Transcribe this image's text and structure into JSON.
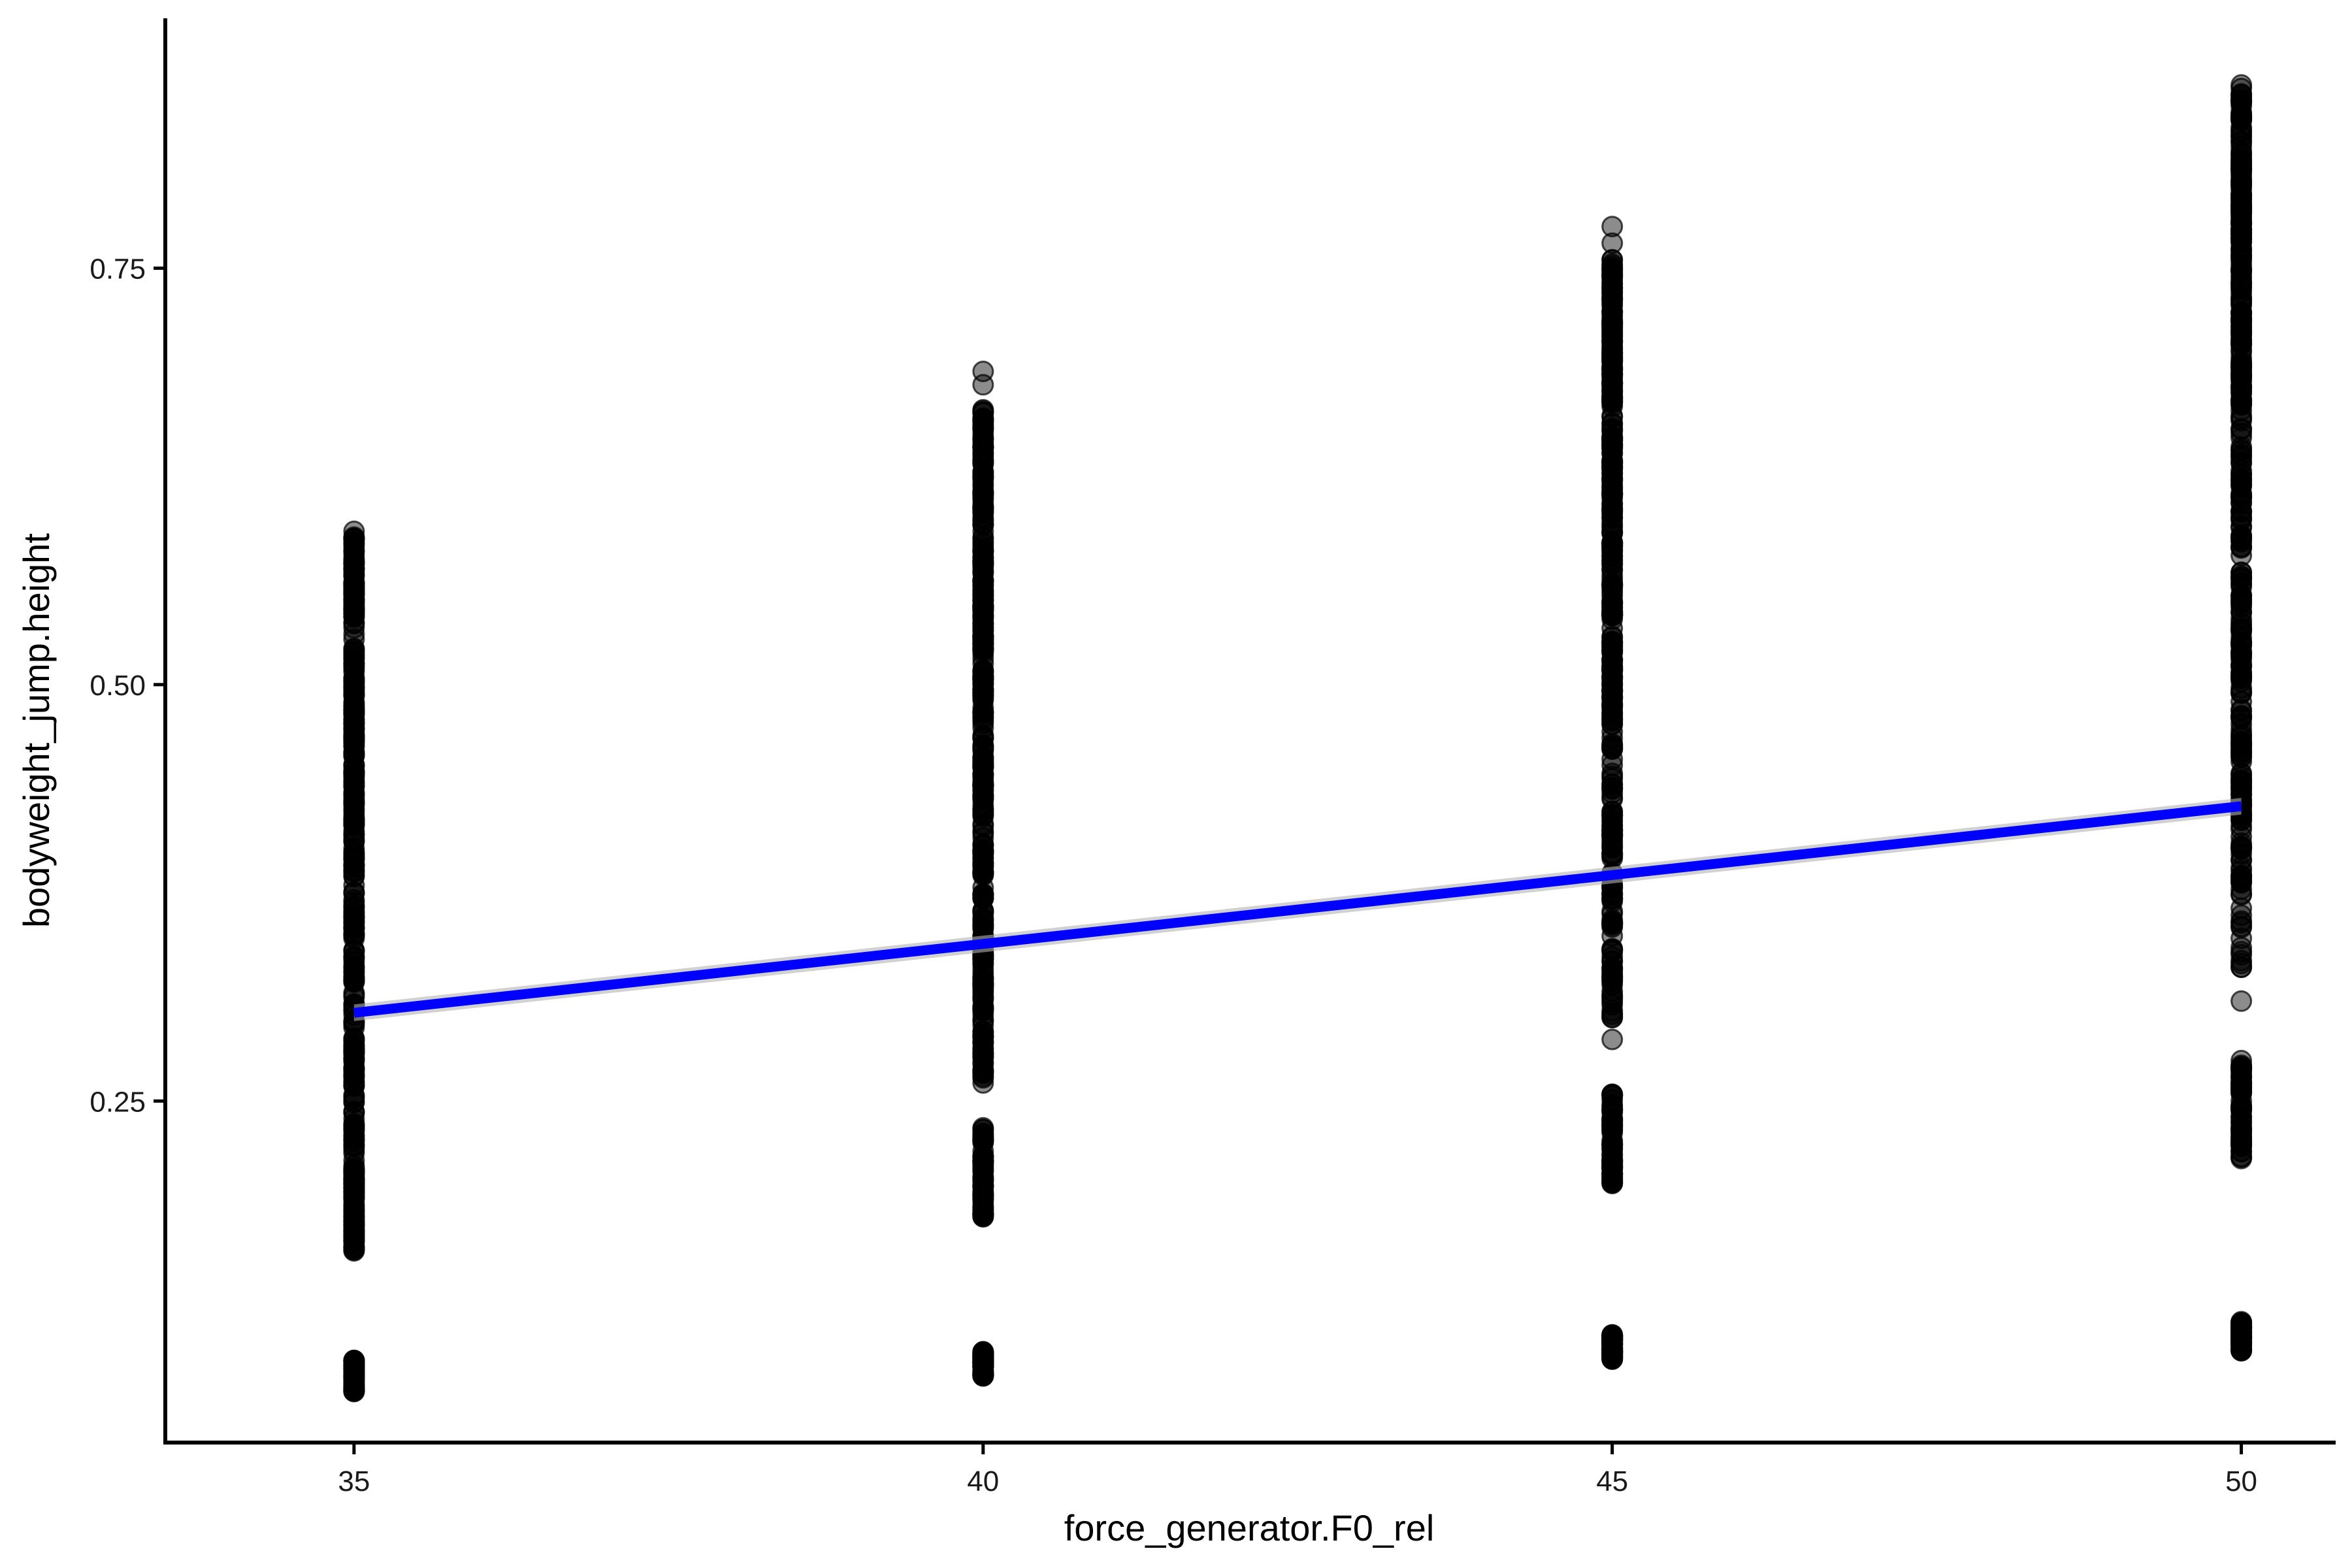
{
  "chart_data": {
    "type": "scatter",
    "xlabel": "force_generator.F0_rel",
    "ylabel": "bodyweight_jump.height",
    "xlim": [
      33.5,
      50.75
    ],
    "ylim": [
      0.045,
      0.9
    ],
    "x_ticks": [
      {
        "value": 35,
        "label": "35"
      },
      {
        "value": 40,
        "label": "40"
      },
      {
        "value": 45,
        "label": "45"
      },
      {
        "value": 50,
        "label": "50"
      }
    ],
    "y_ticks": [
      {
        "value": 0.25,
        "label": "0.25"
      },
      {
        "value": 0.5,
        "label": "0.50"
      },
      {
        "value": 0.75,
        "label": "0.75"
      }
    ],
    "grid": false,
    "point_color": "#000000",
    "point_opacity": 0.45,
    "fit_color": "#0000ff",
    "fit_band_color": "#b3b3b3",
    "groups": [
      {
        "x": 35,
        "y_min": 0.165,
        "y_max": 0.59,
        "clusters": [
          [
            0.075,
            0.095
          ],
          [
            0.16,
            0.21
          ]
        ],
        "outliers": [
          0.592,
          0.583,
          0.57,
          0.565
        ]
      },
      {
        "x": 40,
        "y_min": 0.26,
        "y_max": 0.665,
        "clusters": [
          [
            0.085,
            0.1
          ],
          [
            0.18,
            0.235
          ]
        ],
        "outliers": [
          0.688,
          0.68,
          0.665,
          0.66
        ]
      },
      {
        "x": 45,
        "y_min": 0.3,
        "y_max": 0.755,
        "clusters": [
          [
            0.095,
            0.11
          ],
          [
            0.2,
            0.255
          ]
        ],
        "outliers": [
          0.287,
          0.775,
          0.765,
          0.755
        ]
      },
      {
        "x": 50,
        "y_min": 0.33,
        "y_max": 0.86,
        "clusters": [
          [
            0.1,
            0.118
          ],
          [
            0.215,
            0.275
          ]
        ],
        "outliers": [
          0.31,
          0.86,
          0.85,
          0.84
        ]
      }
    ],
    "fit": {
      "x": [
        35,
        50
      ],
      "y": [
        0.303,
        0.427
      ]
    }
  }
}
